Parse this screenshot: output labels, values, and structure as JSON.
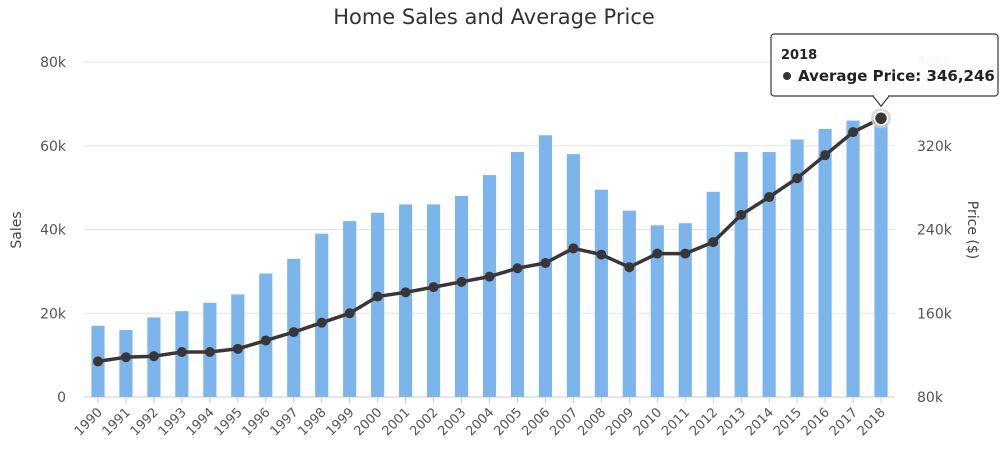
{
  "chart_data": {
    "type": "bar",
    "title": "Home Sales and Average Price",
    "categories": [
      "1990",
      "1991",
      "1992",
      "1993",
      "1994",
      "1995",
      "1996",
      "1997",
      "1998",
      "1999",
      "2000",
      "2001",
      "2002",
      "2003",
      "2004",
      "2005",
      "2006",
      "2007",
      "2008",
      "2009",
      "2010",
      "2011",
      "2012",
      "2013",
      "2014",
      "2015",
      "2016",
      "2017",
      "2018"
    ],
    "series": [
      {
        "name": "Sales",
        "type": "bar",
        "axis": "left",
        "color": "#7cb5ec",
        "values": [
          17000,
          16000,
          19000,
          20500,
          22500,
          24500,
          29500,
          33000,
          39000,
          42000,
          44000,
          46000,
          46000,
          48000,
          53000,
          58500,
          62500,
          58000,
          49500,
          44500,
          41000,
          41500,
          49000,
          58500,
          58500,
          61500,
          64000,
          66000,
          66000
        ]
      },
      {
        "name": "Average Price",
        "type": "line",
        "axis": "right",
        "color": "#3a3638",
        "values": [
          114000,
          118000,
          119000,
          123000,
          123000,
          126000,
          134000,
          142000,
          151000,
          160000,
          176000,
          180000,
          185000,
          190000,
          195000,
          203000,
          208000,
          222000,
          216000,
          204000,
          217000,
          217000,
          228000,
          254000,
          271000,
          289000,
          311000,
          333000,
          346246
        ]
      }
    ],
    "xlabel": "",
    "ylabel": "Sales",
    "ylabel_right": "Price ($)",
    "ylim": [
      0,
      80000
    ],
    "ylim_right": [
      80000,
      400000
    ],
    "yticks": [
      "0",
      "20k",
      "40k",
      "60k",
      "80k"
    ],
    "yticks_right": [
      "80k",
      "160k",
      "240k",
      "320k",
      "400k"
    ],
    "grid": true,
    "tooltip": {
      "header": "2018",
      "series_label": "Average Price",
      "value": "346,246"
    }
  }
}
